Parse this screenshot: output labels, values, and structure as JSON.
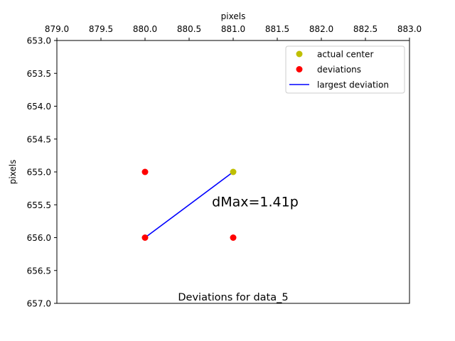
{
  "chart_data": {
    "type": "scatter",
    "title": "Deviations for data_5",
    "xlabel": "pixels",
    "ylabel": "pixels",
    "x_axis_position": "top",
    "y_axis_inverted": true,
    "xlim": [
      879.0,
      883.0
    ],
    "ylim": [
      653.0,
      657.0
    ],
    "x_ticks": [
      "879.0",
      "879.5",
      "880.0",
      "880.5",
      "881.0",
      "881.5",
      "882.0",
      "882.5",
      "883.0"
    ],
    "y_ticks": [
      "653.0",
      "653.5",
      "654.0",
      "654.5",
      "655.0",
      "655.5",
      "656.0",
      "656.5",
      "657.0"
    ],
    "grid": false,
    "legend_position": "top-right",
    "series": [
      {
        "name": "actual center",
        "kind": "points",
        "color": "#bfbf00",
        "points": [
          [
            881,
            655
          ]
        ]
      },
      {
        "name": "deviations",
        "kind": "points",
        "color": "#ff0000",
        "points": [
          [
            880,
            655
          ],
          [
            880,
            656
          ],
          [
            881,
            656
          ]
        ]
      },
      {
        "name": "largest deviation",
        "kind": "line",
        "color": "#0000ff",
        "points": [
          [
            880,
            656
          ],
          [
            881,
            655
          ]
        ]
      }
    ],
    "annotation": {
      "text": "dMax=1.41p",
      "x": 881.25,
      "y": 655.45,
      "color": "#0000ff"
    }
  }
}
